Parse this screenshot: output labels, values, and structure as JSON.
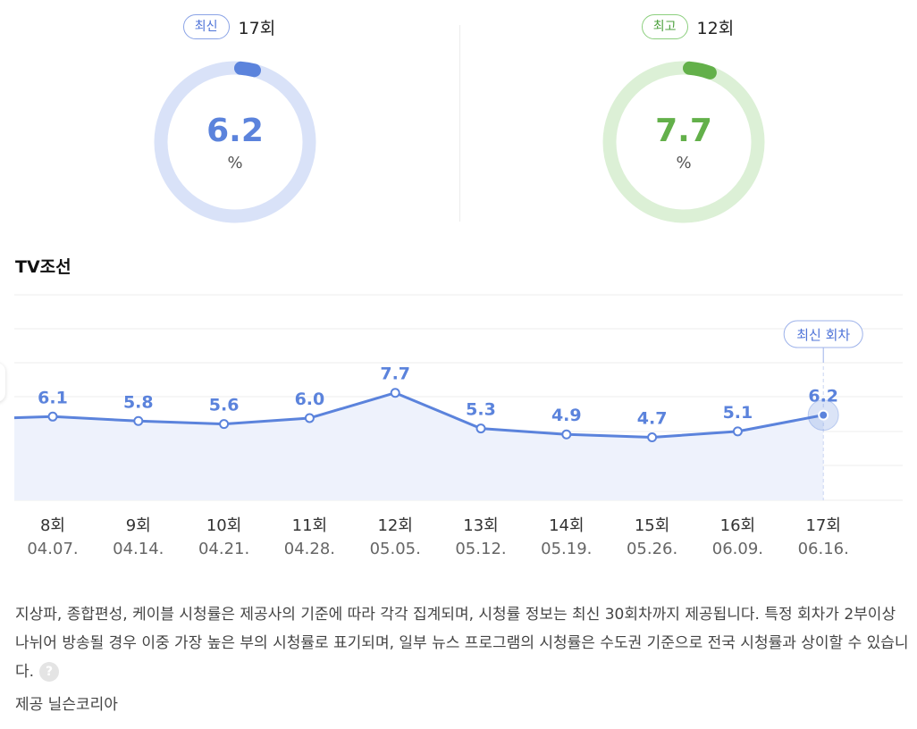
{
  "latest": {
    "badge": "최신",
    "episode": "17회",
    "value": "6.2",
    "unit": "%"
  },
  "highest": {
    "badge": "최고",
    "episode": "12회",
    "value": "7.7",
    "unit": "%"
  },
  "colors": {
    "blue": "#5b83dc",
    "blue_light": "#d9e2f8",
    "green": "#63b04a",
    "green_light": "#dcf0d6",
    "line": "#5b83dc",
    "area": "#eef2fc"
  },
  "channel": "TV조선",
  "chart_data": {
    "type": "line",
    "categories": [
      "8회",
      "9회",
      "10회",
      "11회",
      "12회",
      "13회",
      "14회",
      "15회",
      "16회",
      "17회"
    ],
    "dates": [
      "04.07.",
      "04.14.",
      "04.21.",
      "04.28.",
      "05.05.",
      "05.12.",
      "05.19.",
      "05.26.",
      "06.09.",
      "06.16."
    ],
    "values": [
      6.1,
      5.8,
      5.6,
      6.0,
      7.7,
      5.3,
      4.9,
      4.7,
      5.1,
      6.2
    ],
    "value_labels": [
      "6.1",
      "5.8",
      "5.6",
      "6.0",
      "7.7",
      "5.3",
      "4.9",
      "4.7",
      "5.1",
      "6.2"
    ],
    "highlight_label": "최신 회차",
    "grid": true
  },
  "note": {
    "text": "지상파, 종합편성, 케이블 시청률은 제공사의 기준에 따라 각각 집계되며, 시청률 정보는 최신 30회차까지 제공됩니다. 특정 회차가 2부이상 나뉘어 방송될 경우 이중 가장 높은 부의 시청률로 표기되며, 일부 뉴스 프로그램의 시청률은 수도권 기준으로 전국 시청률과 상이할 수 있습니다.",
    "help_icon": "?"
  },
  "source": "제공 닐슨코리아"
}
